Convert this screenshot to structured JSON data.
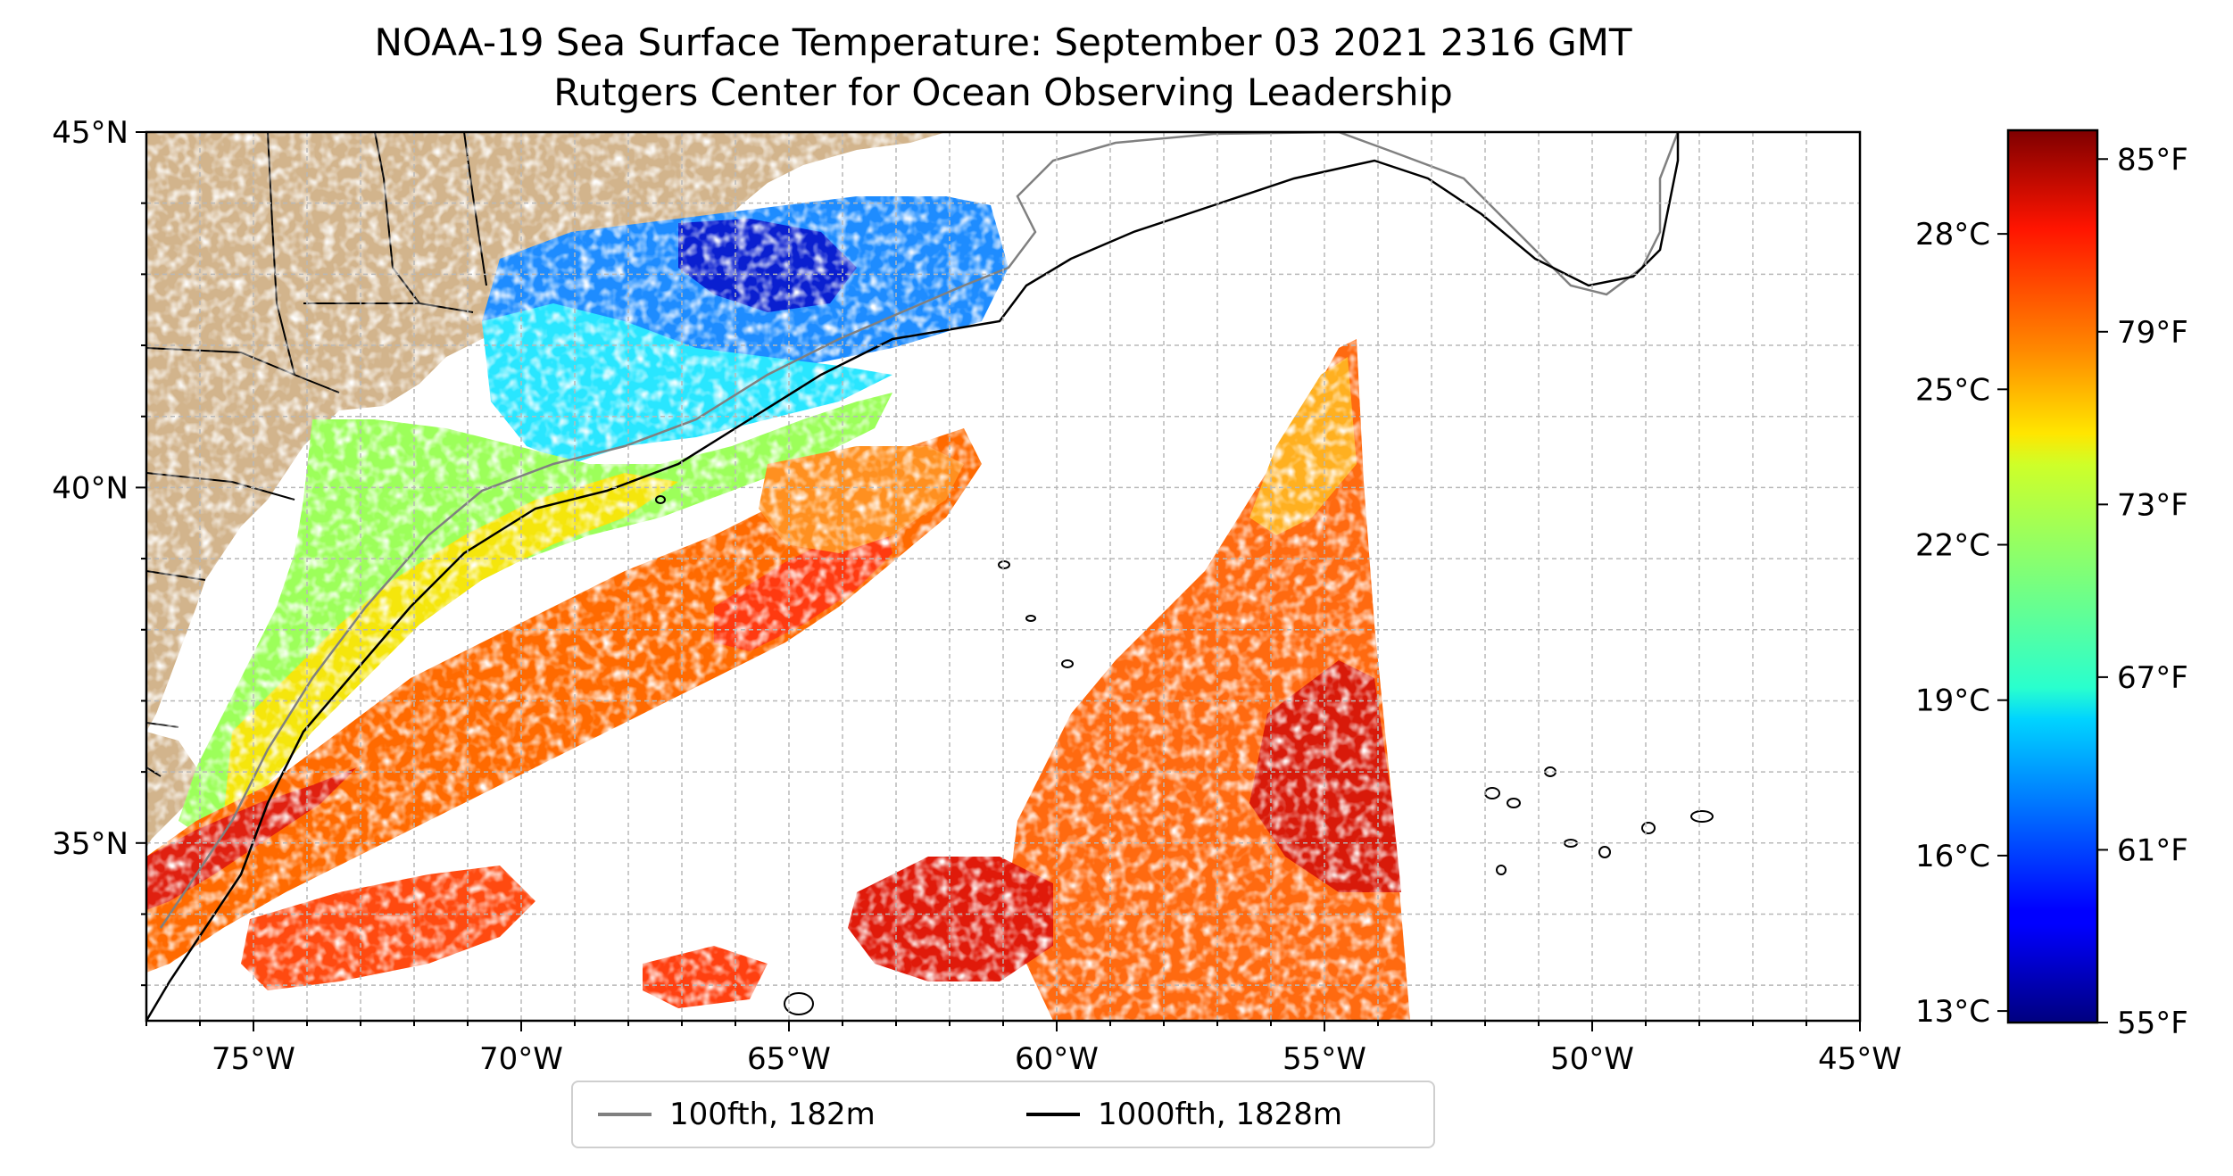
{
  "title": {
    "line1": "NOAA-19 Sea Surface Temperature: September 03 2021 2316 GMT",
    "line2": "Rutgers Center for Ocean Observing Leadership"
  },
  "map": {
    "lon_range": [
      -77,
      -45
    ],
    "lat_range": [
      32.5,
      45
    ],
    "x_ticks": [
      "75°W",
      "70°W",
      "65°W",
      "60°W",
      "55°W",
      "50°W",
      "45°W"
    ],
    "y_ticks": [
      "45°N",
      "40°N",
      "35°N"
    ],
    "grid": true,
    "land_color": "#d2b48c"
  },
  "legend": {
    "items": [
      {
        "label": "100fth, 182m",
        "color": "#808080"
      },
      {
        "label": "1000fth, 1828m",
        "color": "#000000"
      }
    ]
  },
  "colorbar": {
    "colormap": "jet",
    "range_f": [
      55,
      86
    ],
    "celsius_ticks": [
      "28°C",
      "25°C",
      "22°C",
      "19°C",
      "16°C",
      "13°C"
    ],
    "fahrenheit_ticks": [
      "85°F",
      "79°F",
      "73°F",
      "67°F",
      "61°F",
      "55°F"
    ]
  }
}
